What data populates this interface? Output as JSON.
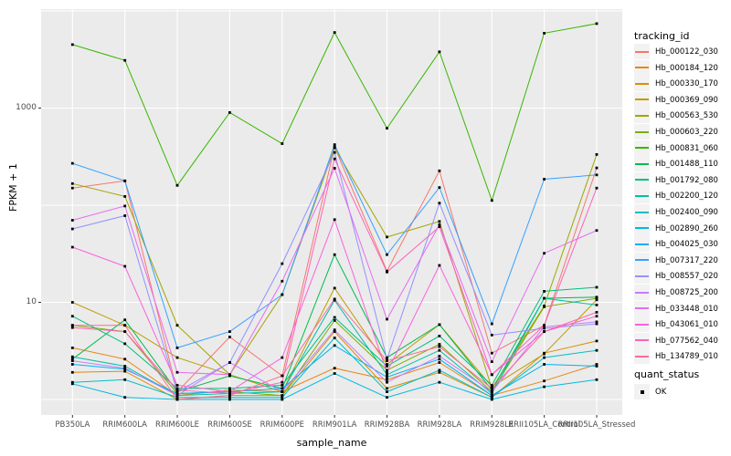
{
  "chart_data": {
    "type": "line",
    "title": "",
    "xlabel": "sample_name",
    "ylabel": "FPKM + 1",
    "y_scale": "log10",
    "ylim": [
      0.7,
      11000
    ],
    "grid": "on",
    "legend_position": "right",
    "y_ticks": [
      {
        "label": "1000",
        "value": 1000
      },
      {
        "label": "10",
        "value": 10
      }
    ],
    "y_gridline_values": [
      1,
      10,
      100,
      1000,
      10000
    ],
    "categories": [
      "PB350LA",
      "RRIM600LA",
      "RRIM600LE",
      "RRIM600SE",
      "RRIM600PE",
      "RRIM901LA",
      "RRIM928BA",
      "RRIM928LA",
      "RRIM928LE",
      "RRII105LA_Control",
      "RRII105LA_Stressed"
    ],
    "series": [
      {
        "name": "Hb_000122_030",
        "color": "#F8766D",
        "values": [
          150,
          178,
          1.2,
          4.4,
          1.75,
          400,
          21,
          226,
          3.0,
          5.8,
          242
        ]
      },
      {
        "name": "Hb_000184_120",
        "color": "#E68613",
        "values": [
          3.4,
          2.6,
          1.1,
          1.25,
          1.2,
          2.1,
          1.6,
          2.4,
          1.1,
          1.55,
          2.3
        ]
      },
      {
        "name": "Hb_000330_170",
        "color": "#D89000",
        "values": [
          1.9,
          1.95,
          1.0,
          1.1,
          1.1,
          5.0,
          1.3,
          1.9,
          1.05,
          3.0,
          4.0
        ]
      },
      {
        "name": "Hb_000369_090",
        "color": "#C09B00",
        "values": [
          10,
          5.8,
          2.7,
          1.8,
          1.2,
          14,
          2.3,
          5.9,
          1.35,
          2.95,
          10.6
        ]
      },
      {
        "name": "Hb_000563_530",
        "color": "#A3A500",
        "values": [
          167,
          123,
          5.8,
          1.8,
          12,
          390,
          47,
          68,
          1.3,
          9.2,
          333
        ]
      },
      {
        "name": "Hb_000603_220",
        "color": "#7CAE00",
        "values": [
          5.8,
          5.0,
          1.15,
          1.2,
          1.1,
          6.5,
          2.0,
          3.7,
          1.2,
          9.0,
          11
        ]
      },
      {
        "name": "Hb_000831_060",
        "color": "#39B600",
        "values": [
          4500,
          3100,
          160,
          900,
          430,
          6000,
          620,
          3800,
          112,
          5900,
          7400
        ]
      },
      {
        "name": "Hb_001488_110",
        "color": "#00BB4E",
        "values": [
          2.6,
          6.6,
          1.2,
          1.75,
          1.3,
          31,
          2.7,
          5.9,
          1.25,
          11,
          11.3
        ]
      },
      {
        "name": "Hb_001792_080",
        "color": "#00BF7D",
        "values": [
          7.2,
          3.75,
          1.3,
          1.3,
          1.4,
          7.0,
          2.2,
          4.5,
          1.4,
          13,
          14.3
        ]
      },
      {
        "name": "Hb_002200_120",
        "color": "#00C1A3",
        "values": [
          2.75,
          2.2,
          1.1,
          1.15,
          1.2,
          10.5,
          1.8,
          3.2,
          1.15,
          11,
          9.4
        ]
      },
      {
        "name": "Hb_002400_090",
        "color": "#00BFC4",
        "values": [
          1.5,
          1.6,
          1.05,
          1.05,
          1.05,
          4.3,
          1.2,
          2.0,
          1.05,
          2.7,
          3.2
        ]
      },
      {
        "name": "Hb_002890_260",
        "color": "#00BAE0",
        "values": [
          1.45,
          1.05,
          1.0,
          1.0,
          1.0,
          1.85,
          1.05,
          1.5,
          1.0,
          1.35,
          1.6
        ]
      },
      {
        "name": "Hb_004025_030",
        "color": "#00B0F6",
        "values": [
          2.3,
          2.05,
          1.15,
          1.2,
          1.3,
          3.6,
          1.7,
          2.6,
          1.1,
          2.3,
          2.2
        ]
      },
      {
        "name": "Hb_007317_220",
        "color": "#35A2FF",
        "values": [
          270,
          178,
          3.4,
          5.0,
          12,
          420,
          31,
          152,
          6.0,
          185,
          205
        ]
      },
      {
        "name": "Hb_008557_020",
        "color": "#9590FF",
        "values": [
          57,
          78,
          1.2,
          2.4,
          25,
          350,
          2.6,
          105,
          4.6,
          5.4,
          6.0
        ]
      },
      {
        "name": "Hb_008725_200",
        "color": "#C77CFF",
        "values": [
          2.5,
          2.1,
          1.1,
          2.4,
          1.2,
          5.2,
          1.5,
          2.8,
          1.2,
          5.6,
          6.3
        ]
      },
      {
        "name": "Hb_033448_010",
        "color": "#E76BF3",
        "values": [
          70,
          98,
          1.9,
          1.8,
          16.5,
          240,
          6.7,
          63,
          2.45,
          32,
          55
        ]
      },
      {
        "name": "Hb_043061_010",
        "color": "#FA62DB",
        "values": [
          37,
          23.5,
          1.4,
          1.2,
          2.7,
          71,
          1.9,
          24,
          1.8,
          5.0,
          7.2
        ]
      },
      {
        "name": "Hb_077562_040",
        "color": "#FF62BC",
        "values": [
          5.5,
          5.0,
          1.25,
          1.15,
          1.5,
          300,
          20.5,
          60,
          1.8,
          5.8,
          150
        ]
      },
      {
        "name": "Hb_134789_010",
        "color": "#FF6A98",
        "values": [
          5.8,
          5.8,
          1.0,
          1.1,
          1.75,
          10.8,
          2.5,
          3.5,
          1.3,
          5.0,
          7.9
        ]
      }
    ]
  },
  "legend": {
    "tracking_title": "tracking_id",
    "quant_title": "quant_status",
    "quant_items": [
      {
        "label": "OK",
        "shape": "black-square-point"
      }
    ]
  },
  "colors": {
    "panel_bg": "#EBEBEB",
    "gridline": "#FFFFFF",
    "tick_text": "#4D4D4D",
    "axis_title_text": "#000000",
    "point": "#000000",
    "legend_key_bg": "#F2F2F2"
  }
}
